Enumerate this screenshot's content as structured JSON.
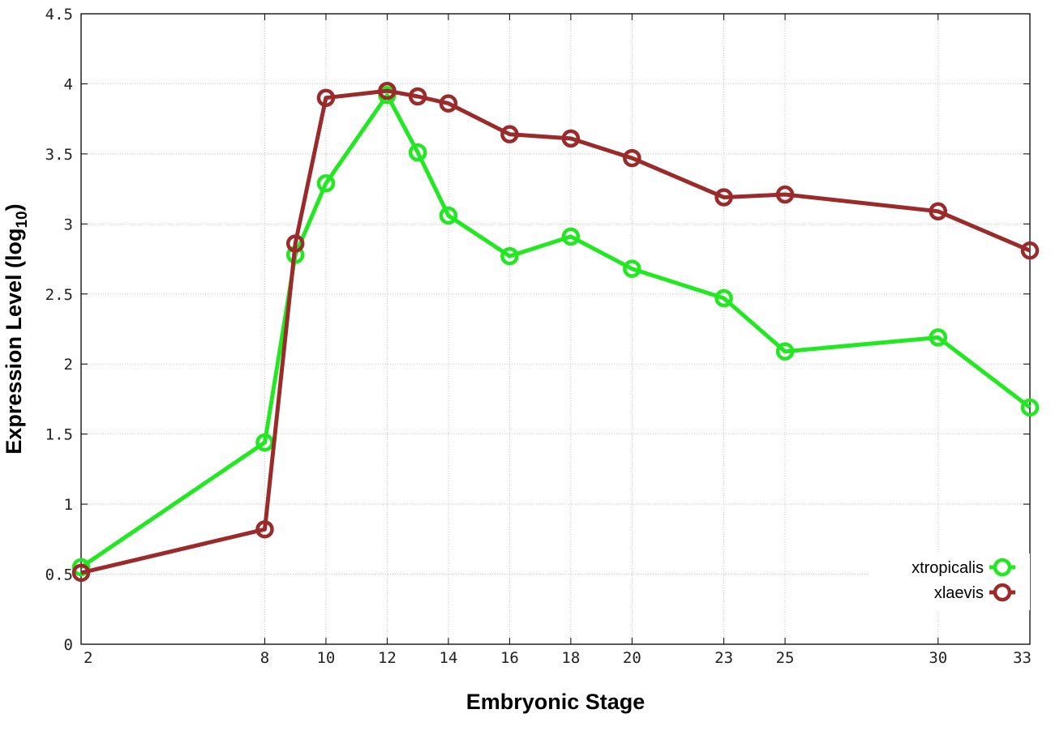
{
  "chart_data": {
    "type": "line",
    "xlabel": "Embryonic Stage",
    "ylabel": "Expression Level (log",
    "ylabel_sub": "10",
    "ylabel_end": ")",
    "xlim": [
      2,
      33
    ],
    "ylim": [
      0,
      4.5
    ],
    "grid": true,
    "legend_position": "bottom-right",
    "xticks": [
      2,
      8,
      10,
      12,
      14,
      16,
      18,
      20,
      23,
      25,
      30,
      33
    ],
    "yticks": [
      0,
      0.5,
      1,
      1.5,
      2,
      2.5,
      3,
      3.5,
      4,
      4.5
    ],
    "ytick_labels": [
      "0",
      "0.5",
      "1",
      "1.5",
      "2",
      "2.5",
      "3",
      "3.5",
      "4",
      "4.5"
    ],
    "series": [
      {
        "name": "xtropicalis",
        "color": "#22e822",
        "x": [
          2,
          8,
          9,
          10,
          12,
          13,
          14,
          16,
          18,
          20,
          23,
          25,
          30,
          33
        ],
        "y": [
          0.55,
          1.44,
          2.78,
          3.29,
          3.92,
          3.51,
          3.06,
          2.77,
          2.91,
          2.68,
          2.47,
          2.09,
          2.19,
          1.69
        ]
      },
      {
        "name": "xlaevis",
        "color": "#9b2b2b",
        "x": [
          2,
          8,
          9,
          10,
          12,
          13,
          14,
          16,
          18,
          20,
          23,
          25,
          30,
          33
        ],
        "y": [
          0.51,
          0.82,
          2.86,
          3.9,
          3.95,
          3.91,
          3.86,
          3.64,
          3.61,
          3.47,
          3.19,
          3.21,
          3.09,
          2.81
        ]
      }
    ]
  }
}
